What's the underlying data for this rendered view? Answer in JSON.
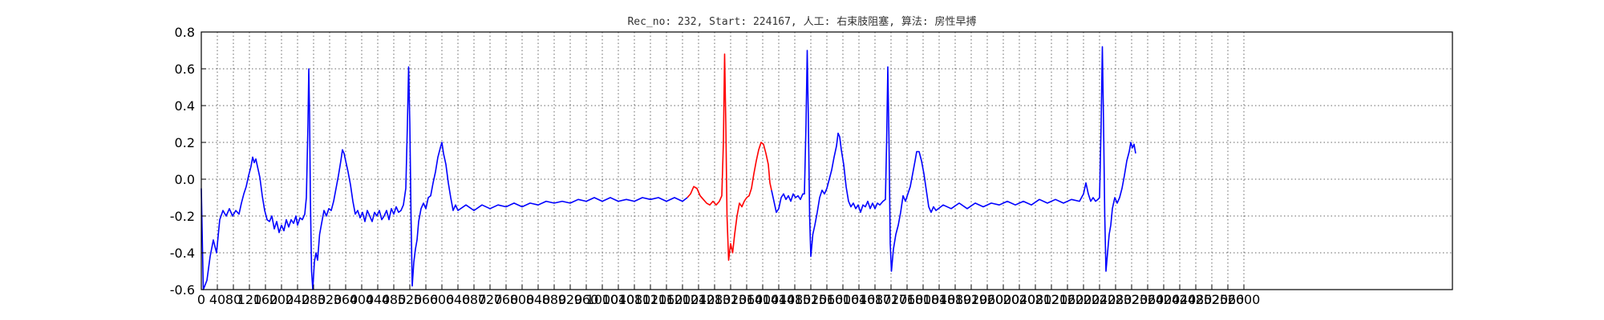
{
  "chart_data": {
    "type": "line",
    "title": "Rec_no: 232, Start: 224167, 人工: 右束肢阻塞, 算法: 房性早搏",
    "xlabel": "",
    "ylabel": "",
    "xlim": [
      0,
      3120
    ],
    "ylim": [
      -0.6,
      0.8
    ],
    "grid": true,
    "x_ticks": [
      0,
      40,
      80,
      120,
      160,
      200,
      240,
      280,
      320,
      360,
      400,
      440,
      480,
      520,
      560,
      600,
      640,
      680,
      720,
      760,
      800,
      840,
      880,
      920,
      960,
      1000,
      1040,
      1080,
      1120,
      1160,
      1200,
      1240,
      1280,
      1320,
      1360,
      1400,
      1440,
      1480,
      1520,
      1560,
      1600,
      1640,
      1680,
      1720,
      1760,
      1800,
      1840,
      1880,
      1920,
      1960,
      2000,
      2040,
      2080,
      2120,
      2160,
      2200,
      2240,
      2280,
      2320,
      2360,
      2400,
      2440,
      2480,
      2520,
      2560,
      2600
    ],
    "y_ticks": [
      -0.6,
      -0.4,
      -0.2,
      0.0,
      0.2,
      0.4,
      0.6,
      0.8
    ],
    "series": [
      {
        "color": "#0000ff",
        "points": [
          [
            0,
            -0.05
          ],
          [
            5,
            -0.6
          ],
          [
            14,
            -0.55
          ],
          [
            22,
            -0.42
          ],
          [
            30,
            -0.33
          ],
          [
            38,
            -0.4
          ],
          [
            46,
            -0.22
          ],
          [
            54,
            -0.17
          ],
          [
            62,
            -0.2
          ],
          [
            70,
            -0.16
          ],
          [
            78,
            -0.2
          ],
          [
            86,
            -0.17
          ],
          [
            94,
            -0.19
          ],
          [
            100,
            -0.13
          ],
          [
            106,
            -0.08
          ],
          [
            112,
            -0.04
          ],
          [
            118,
            0.02
          ],
          [
            124,
            0.07
          ],
          [
            128,
            0.12
          ],
          [
            132,
            0.09
          ],
          [
            136,
            0.11
          ],
          [
            140,
            0.07
          ],
          [
            146,
            0.01
          ],
          [
            152,
            -0.09
          ],
          [
            158,
            -0.17
          ],
          [
            164,
            -0.22
          ],
          [
            170,
            -0.23
          ],
          [
            176,
            -0.2
          ],
          [
            182,
            -0.27
          ],
          [
            188,
            -0.23
          ],
          [
            194,
            -0.29
          ],
          [
            200,
            -0.25
          ],
          [
            206,
            -0.28
          ],
          [
            212,
            -0.22
          ],
          [
            218,
            -0.26
          ],
          [
            224,
            -0.22
          ],
          [
            230,
            -0.24
          ],
          [
            236,
            -0.2
          ],
          [
            240,
            -0.25
          ],
          [
            246,
            -0.21
          ],
          [
            252,
            -0.22
          ],
          [
            258,
            -0.19
          ],
          [
            262,
            -0.1
          ],
          [
            266,
            0.3
          ],
          [
            268,
            0.6
          ],
          [
            270,
            0.35
          ],
          [
            272,
            -0.1
          ],
          [
            275,
            -0.5
          ],
          [
            278,
            -0.6
          ],
          [
            282,
            -0.45
          ],
          [
            286,
            -0.4
          ],
          [
            290,
            -0.44
          ],
          [
            295,
            -0.3
          ],
          [
            300,
            -0.24
          ],
          [
            306,
            -0.17
          ],
          [
            312,
            -0.2
          ],
          [
            318,
            -0.16
          ],
          [
            324,
            -0.17
          ],
          [
            330,
            -0.12
          ],
          [
            336,
            -0.05
          ],
          [
            342,
            0.02
          ],
          [
            348,
            0.1
          ],
          [
            352,
            0.16
          ],
          [
            356,
            0.14
          ],
          [
            360,
            0.1
          ],
          [
            366,
            0.04
          ],
          [
            372,
            -0.03
          ],
          [
            378,
            -0.12
          ],
          [
            384,
            -0.19
          ],
          [
            390,
            -0.17
          ],
          [
            396,
            -0.21
          ],
          [
            402,
            -0.18
          ],
          [
            408,
            -0.23
          ],
          [
            414,
            -0.17
          ],
          [
            420,
            -0.2
          ],
          [
            426,
            -0.23
          ],
          [
            432,
            -0.18
          ],
          [
            438,
            -0.2
          ],
          [
            444,
            -0.17
          ],
          [
            450,
            -0.22
          ],
          [
            456,
            -0.2
          ],
          [
            462,
            -0.17
          ],
          [
            468,
            -0.22
          ],
          [
            474,
            -0.16
          ],
          [
            480,
            -0.19
          ],
          [
            486,
            -0.15
          ],
          [
            492,
            -0.18
          ],
          [
            498,
            -0.17
          ],
          [
            504,
            -0.14
          ],
          [
            510,
            -0.05
          ],
          [
            514,
            0.3
          ],
          [
            517,
            0.61
          ],
          [
            520,
            0.3
          ],
          [
            523,
            -0.2
          ],
          [
            526,
            -0.58
          ],
          [
            530,
            -0.45
          ],
          [
            534,
            -0.38
          ],
          [
            538,
            -0.33
          ],
          [
            542,
            -0.23
          ],
          [
            548,
            -0.16
          ],
          [
            554,
            -0.13
          ],
          [
            560,
            -0.16
          ],
          [
            566,
            -0.1
          ],
          [
            572,
            -0.09
          ],
          [
            578,
            -0.02
          ],
          [
            584,
            0.04
          ],
          [
            590,
            0.12
          ],
          [
            596,
            0.17
          ],
          [
            600,
            0.2
          ],
          [
            604,
            0.14
          ],
          [
            610,
            0.08
          ],
          [
            616,
            -0.02
          ],
          [
            622,
            -0.1
          ],
          [
            628,
            -0.17
          ],
          [
            634,
            -0.14
          ],
          [
            640,
            -0.17
          ],
          [
            660,
            -0.14
          ],
          [
            680,
            -0.17
          ],
          [
            700,
            -0.14
          ],
          [
            720,
            -0.16
          ],
          [
            740,
            -0.14
          ],
          [
            760,
            -0.15
          ],
          [
            780,
            -0.13
          ],
          [
            800,
            -0.15
          ],
          [
            820,
            -0.13
          ],
          [
            840,
            -0.14
          ],
          [
            860,
            -0.12
          ],
          [
            880,
            -0.13
          ],
          [
            900,
            -0.12
          ],
          [
            920,
            -0.13
          ],
          [
            940,
            -0.11
          ],
          [
            960,
            -0.12
          ],
          [
            980,
            -0.1
          ],
          [
            1000,
            -0.12
          ],
          [
            1020,
            -0.1
          ],
          [
            1040,
            -0.12
          ],
          [
            1060,
            -0.11
          ],
          [
            1080,
            -0.12
          ],
          [
            1100,
            -0.1
          ],
          [
            1120,
            -0.11
          ],
          [
            1140,
            -0.1
          ],
          [
            1160,
            -0.12
          ],
          [
            1180,
            -0.1
          ],
          [
            1200,
            -0.12
          ],
          [
            1212,
            -0.1
          ]
        ]
      },
      {
        "color": "#ff0000",
        "points": [
          [
            1212,
            -0.1
          ],
          [
            1220,
            -0.08
          ],
          [
            1228,
            -0.04
          ],
          [
            1236,
            -0.05
          ],
          [
            1244,
            -0.09
          ],
          [
            1252,
            -0.11
          ],
          [
            1260,
            -0.13
          ],
          [
            1268,
            -0.14
          ],
          [
            1276,
            -0.12
          ],
          [
            1284,
            -0.14
          ],
          [
            1292,
            -0.12
          ],
          [
            1298,
            -0.09
          ],
          [
            1302,
            0.2
          ],
          [
            1305,
            0.68
          ],
          [
            1308,
            0.3
          ],
          [
            1311,
            -0.2
          ],
          [
            1315,
            -0.44
          ],
          [
            1320,
            -0.35
          ],
          [
            1325,
            -0.4
          ],
          [
            1330,
            -0.3
          ],
          [
            1336,
            -0.2
          ],
          [
            1342,
            -0.13
          ],
          [
            1348,
            -0.15
          ],
          [
            1354,
            -0.12
          ],
          [
            1360,
            -0.1
          ],
          [
            1366,
            -0.09
          ],
          [
            1372,
            -0.05
          ],
          [
            1378,
            0.03
          ],
          [
            1384,
            0.1
          ],
          [
            1390,
            0.16
          ],
          [
            1396,
            0.2
          ],
          [
            1402,
            0.19
          ],
          [
            1408,
            0.14
          ],
          [
            1414,
            0.08
          ],
          [
            1418,
            -0.02
          ],
          [
            1422,
            -0.06
          ]
        ]
      },
      {
        "color": "#0000ff",
        "points": [
          [
            1422,
            -0.06
          ],
          [
            1428,
            -0.12
          ],
          [
            1434,
            -0.18
          ],
          [
            1440,
            -0.16
          ],
          [
            1446,
            -0.1
          ],
          [
            1452,
            -0.08
          ],
          [
            1458,
            -0.11
          ],
          [
            1464,
            -0.09
          ],
          [
            1470,
            -0.12
          ],
          [
            1476,
            -0.08
          ],
          [
            1482,
            -0.1
          ],
          [
            1488,
            -0.09
          ],
          [
            1494,
            -0.11
          ],
          [
            1500,
            -0.08
          ],
          [
            1504,
            -0.08
          ],
          [
            1508,
            0.3
          ],
          [
            1511,
            0.7
          ],
          [
            1514,
            0.3
          ],
          [
            1517,
            -0.2
          ],
          [
            1520,
            -0.42
          ],
          [
            1525,
            -0.3
          ],
          [
            1530,
            -0.25
          ],
          [
            1536,
            -0.18
          ],
          [
            1542,
            -0.1
          ],
          [
            1548,
            -0.06
          ],
          [
            1554,
            -0.08
          ],
          [
            1560,
            -0.05
          ],
          [
            1566,
            0.0
          ],
          [
            1572,
            0.05
          ],
          [
            1578,
            0.12
          ],
          [
            1584,
            0.18
          ],
          [
            1588,
            0.25
          ],
          [
            1592,
            0.23
          ],
          [
            1596,
            0.16
          ],
          [
            1602,
            0.08
          ],
          [
            1608,
            -0.04
          ],
          [
            1614,
            -0.12
          ],
          [
            1620,
            -0.15
          ],
          [
            1626,
            -0.13
          ],
          [
            1632,
            -0.16
          ],
          [
            1638,
            -0.14
          ],
          [
            1644,
            -0.18
          ],
          [
            1650,
            -0.14
          ],
          [
            1656,
            -0.15
          ],
          [
            1662,
            -0.12
          ],
          [
            1668,
            -0.16
          ],
          [
            1674,
            -0.13
          ],
          [
            1680,
            -0.16
          ],
          [
            1686,
            -0.13
          ],
          [
            1692,
            -0.14
          ],
          [
            1700,
            -0.12
          ],
          [
            1706,
            -0.11
          ],
          [
            1709,
            0.2
          ],
          [
            1712,
            0.61
          ],
          [
            1715,
            0.2
          ],
          [
            1718,
            -0.35
          ],
          [
            1721,
            -0.5
          ],
          [
            1726,
            -0.38
          ],
          [
            1732,
            -0.3
          ],
          [
            1738,
            -0.25
          ],
          [
            1744,
            -0.18
          ],
          [
            1750,
            -0.09
          ],
          [
            1756,
            -0.12
          ],
          [
            1762,
            -0.08
          ],
          [
            1768,
            -0.04
          ],
          [
            1774,
            0.03
          ],
          [
            1780,
            0.1
          ],
          [
            1784,
            0.15
          ],
          [
            1790,
            0.15
          ],
          [
            1796,
            0.1
          ],
          [
            1802,
            0.03
          ],
          [
            1808,
            -0.06
          ],
          [
            1814,
            -0.15
          ],
          [
            1820,
            -0.18
          ],
          [
            1826,
            -0.15
          ],
          [
            1832,
            -0.17
          ],
          [
            1850,
            -0.14
          ],
          [
            1870,
            -0.16
          ],
          [
            1890,
            -0.13
          ],
          [
            1910,
            -0.16
          ],
          [
            1930,
            -0.13
          ],
          [
            1950,
            -0.15
          ],
          [
            1970,
            -0.13
          ],
          [
            1990,
            -0.14
          ],
          [
            2010,
            -0.12
          ],
          [
            2030,
            -0.14
          ],
          [
            2050,
            -0.12
          ],
          [
            2070,
            -0.14
          ],
          [
            2090,
            -0.11
          ],
          [
            2110,
            -0.13
          ],
          [
            2130,
            -0.11
          ],
          [
            2150,
            -0.13
          ],
          [
            2170,
            -0.11
          ],
          [
            2190,
            -0.12
          ],
          [
            2200,
            -0.08
          ],
          [
            2206,
            -0.02
          ],
          [
            2212,
            -0.08
          ],
          [
            2218,
            -0.12
          ],
          [
            2224,
            -0.1
          ],
          [
            2230,
            -0.12
          ],
          [
            2236,
            -0.11
          ],
          [
            2240,
            -0.1
          ],
          [
            2244,
            0.3
          ],
          [
            2247,
            0.72
          ],
          [
            2250,
            0.3
          ],
          [
            2253,
            -0.2
          ],
          [
            2256,
            -0.5
          ],
          [
            2260,
            -0.4
          ],
          [
            2264,
            -0.3
          ],
          [
            2268,
            -0.25
          ],
          [
            2272,
            -0.16
          ],
          [
            2278,
            -0.1
          ],
          [
            2284,
            -0.13
          ],
          [
            2290,
            -0.1
          ],
          [
            2296,
            -0.05
          ],
          [
            2302,
            0.02
          ],
          [
            2308,
            0.1
          ],
          [
            2314,
            0.15
          ],
          [
            2318,
            0.2
          ],
          [
            2322,
            0.17
          ],
          [
            2326,
            0.19
          ],
          [
            2330,
            0.14
          ]
        ]
      }
    ]
  }
}
